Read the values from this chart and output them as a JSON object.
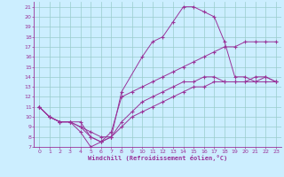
{
  "xlabel": "Windchill (Refroidissement éolien,°C)",
  "background_color": "#cceeff",
  "line_color": "#993399",
  "grid_color": "#99cccc",
  "xlim": [
    -0.5,
    23.5
  ],
  "ylim": [
    7,
    21.5
  ],
  "xticks": [
    0,
    1,
    2,
    3,
    4,
    5,
    6,
    7,
    8,
    9,
    10,
    11,
    12,
    13,
    14,
    15,
    16,
    17,
    18,
    19,
    20,
    21,
    22,
    23
  ],
  "yticks": [
    7,
    8,
    9,
    10,
    11,
    12,
    13,
    14,
    15,
    16,
    17,
    18,
    19,
    20,
    21
  ],
  "line_big_x": [
    0,
    1,
    2,
    3,
    4,
    5,
    6,
    7,
    8,
    10,
    11,
    12,
    13,
    14,
    15,
    16,
    17,
    18,
    19,
    20,
    21,
    22,
    23
  ],
  "line_big_y": [
    11,
    10,
    9.5,
    9.5,
    8.5,
    7,
    7.5,
    8,
    12.5,
    16,
    17.5,
    18,
    19.5,
    21,
    21,
    20.5,
    20,
    17.5,
    14,
    14,
    13.5,
    14,
    13.5
  ],
  "line_diag_x": [
    0,
    1,
    2,
    3,
    4,
    5,
    6,
    7,
    8,
    9,
    10,
    11,
    12,
    13,
    14,
    15,
    16,
    17,
    18,
    19,
    20,
    21,
    22,
    23
  ],
  "line_diag_y": [
    11,
    10,
    9.5,
    9.5,
    9.5,
    8,
    7.5,
    8.5,
    12,
    12.5,
    13,
    13.5,
    14,
    14.5,
    15,
    15.5,
    16,
    16.5,
    17,
    17,
    17.5,
    17.5,
    17.5,
    17.5
  ],
  "line_mid_x": [
    0,
    1,
    2,
    3,
    4,
    5,
    6,
    7,
    8,
    9,
    10,
    11,
    12,
    13,
    14,
    15,
    16,
    17,
    18,
    19,
    20,
    21,
    22,
    23
  ],
  "line_mid_y": [
    11,
    10,
    9.5,
    9.5,
    9,
    8.5,
    8,
    8,
    9.5,
    10.5,
    11.5,
    12,
    12.5,
    13,
    13.5,
    13.5,
    14,
    14,
    13.5,
    13.5,
    13.5,
    14,
    14,
    13.5
  ],
  "line_low_x": [
    0,
    1,
    2,
    3,
    4,
    5,
    6,
    7,
    8,
    9,
    10,
    11,
    12,
    13,
    14,
    15,
    16,
    17,
    18,
    19,
    20,
    21,
    22,
    23
  ],
  "line_low_y": [
    11,
    10,
    9.5,
    9.5,
    9,
    8,
    7.5,
    8,
    9,
    10,
    10.5,
    11,
    11.5,
    12,
    12.5,
    13,
    13,
    13.5,
    13.5,
    13.5,
    13.5,
    13.5,
    13.5,
    13.5
  ]
}
